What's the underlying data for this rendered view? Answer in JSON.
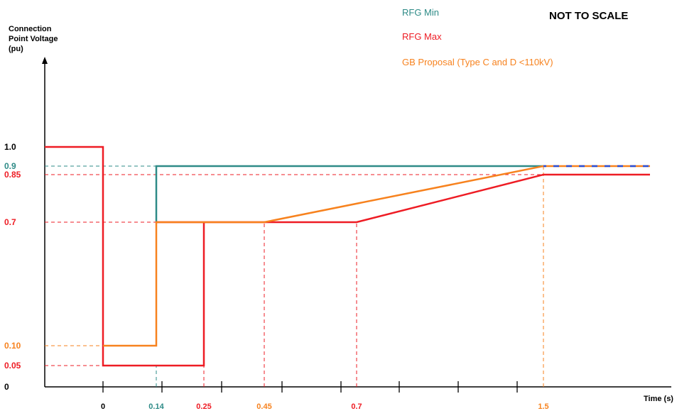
{
  "chart_data": {
    "type": "line",
    "note": "NOT TO SCALE",
    "ylabel_lines": [
      "Connection",
      "Point Voltage",
      "(pu)"
    ],
    "xlabel": "Time (s)",
    "colors": {
      "rfg_min": "#2e8b87",
      "rfg_max": "#ee1c24",
      "gb": "#f7821e",
      "axis": "#000000",
      "dash_blue": "#2a4fd6"
    },
    "y_ticks": [
      {
        "label": "1.0",
        "value": 1.0,
        "color": "#000000"
      },
      {
        "label": "0.9",
        "value": 0.9,
        "color": "#2e8b87"
      },
      {
        "label": "0.85",
        "value": 0.85,
        "color": "#ee1c24"
      },
      {
        "label": "0.7",
        "value": 0.7,
        "color": "#ee1c24"
      },
      {
        "label": "0.10",
        "value": 0.1,
        "color": "#f7821e"
      },
      {
        "label": "0.05",
        "value": 0.05,
        "color": "#ee1c24"
      },
      {
        "label": "0",
        "value": 0,
        "color": "#000000"
      }
    ],
    "x_ticks": [
      {
        "label": "0",
        "value": 0,
        "color": "#000000"
      },
      {
        "label": "0.14",
        "value": 0.14,
        "color": "#2e8b87"
      },
      {
        "label": "0.25",
        "value": 0.25,
        "color": "#ee1c24"
      },
      {
        "label": "0.45",
        "value": 0.45,
        "color": "#f7821e"
      },
      {
        "label": "0.7",
        "value": 0.7,
        "color": "#ee1c24"
      },
      {
        "label": "1.5",
        "value": 1.5,
        "color": "#f7821e"
      }
    ],
    "series": [
      {
        "name": "RFG Min",
        "color": "#2e8b87",
        "points": [
          [
            0.14,
            0.7
          ],
          [
            0.14,
            0.9
          ],
          [
            1.5,
            0.9
          ]
        ]
      },
      {
        "name": "RFG Max",
        "color": "#ee1c24",
        "points": [
          [
            -0.15,
            1.0
          ],
          [
            0,
            1.0
          ],
          [
            0,
            0.05
          ],
          [
            0.25,
            0.05
          ],
          [
            0.25,
            0.7
          ],
          [
            0.14,
            0.7
          ],
          [
            0.14,
            0.7
          ],
          [
            0.7,
            0.7
          ],
          [
            1.5,
            0.85
          ],
          [
            2.0,
            0.85
          ]
        ]
      },
      {
        "name": "GB Proposal (Type C and D <110kV)",
        "color": "#f7821e",
        "points": [
          [
            0,
            0.1
          ],
          [
            0.14,
            0.1
          ],
          [
            0.14,
            0.7
          ],
          [
            0.45,
            0.7
          ],
          [
            1.5,
            0.9
          ],
          [
            2.0,
            0.9
          ]
        ]
      }
    ],
    "guides": [
      {
        "kind": "h",
        "value": 0.9,
        "from": -0.15,
        "to": 0.14,
        "color": "#2e8b87"
      },
      {
        "kind": "h",
        "value": 0.85,
        "from": -0.15,
        "to": 1.5,
        "color": "#ee1c24"
      },
      {
        "kind": "h",
        "value": 0.7,
        "from": -0.15,
        "to": 0.14,
        "color": "#ee1c24"
      },
      {
        "kind": "h",
        "value": 0.1,
        "from": -0.15,
        "to": 0,
        "color": "#f7821e"
      },
      {
        "kind": "h",
        "value": 0.05,
        "from": -0.15,
        "to": 0,
        "color": "#ee1c24"
      },
      {
        "kind": "v",
        "value": 0.14,
        "from": 0,
        "to": 0.05,
        "color": "#2e8b87"
      },
      {
        "kind": "v",
        "value": 0.25,
        "from": 0,
        "to": 0.05,
        "color": "#ee1c24"
      },
      {
        "kind": "v",
        "value": 0.45,
        "from": 0,
        "to": 0.7,
        "color": "#ee1c24"
      },
      {
        "kind": "v",
        "value": 0.7,
        "from": 0,
        "to": 0.7,
        "color": "#ee1c24"
      },
      {
        "kind": "v",
        "value": 1.5,
        "from": 0,
        "to": 0.9,
        "color": "#f7821e"
      }
    ],
    "legend": [
      {
        "label": "RFG Min",
        "color": "#2e8b87"
      },
      {
        "label": "RFG Max",
        "color": "#ee1c24"
      },
      {
        "label": "GB Proposal (Type C and D <110kV)",
        "color": "#f7821e"
      }
    ]
  }
}
